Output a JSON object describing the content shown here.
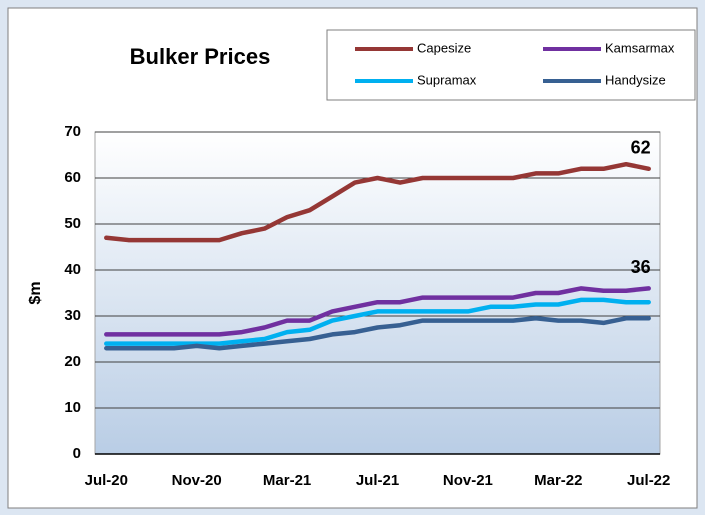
{
  "chart_data": {
    "type": "line",
    "title": "Bulker Prices",
    "y_label": "$m",
    "categories": [
      "Jul-20",
      null,
      null,
      null,
      "Nov-20",
      null,
      null,
      null,
      "Mar-21",
      null,
      null,
      null,
      "Jul-21",
      null,
      null,
      null,
      "Nov-21",
      null,
      null,
      null,
      "Mar-22",
      null,
      null,
      null,
      "Jul-22"
    ],
    "series": [
      {
        "name": "Capesize",
        "color": "#953735",
        "values": [
          47,
          46.5,
          46.5,
          46.5,
          46.5,
          46.5,
          48,
          49,
          51.5,
          53,
          56,
          59,
          60,
          59,
          60,
          60,
          60,
          60,
          60,
          61,
          61,
          62,
          62,
          63,
          62
        ]
      },
      {
        "name": "Kamsarmax",
        "color": "#7030a0",
        "values": [
          26,
          26,
          26,
          26,
          26,
          26,
          26.5,
          27.5,
          29,
          29,
          31,
          32,
          33,
          33,
          34,
          34,
          34,
          34,
          34,
          35,
          35,
          36,
          35.5,
          35.5,
          36
        ]
      },
      {
        "name": "Supramax",
        "color": "#00b0f0",
        "values": [
          24,
          24,
          24,
          24,
          24,
          24,
          24.5,
          25,
          26.5,
          27,
          29,
          30,
          31,
          31,
          31,
          31,
          31,
          32,
          32,
          32.5,
          32.5,
          33.5,
          33.5,
          33,
          33
        ]
      },
      {
        "name": "Handysize",
        "color": "#376092",
        "values": [
          23,
          23,
          23,
          23,
          23.5,
          23,
          23.5,
          24,
          24.5,
          25,
          26,
          26.5,
          27.5,
          28,
          29,
          29,
          29,
          29,
          29,
          29.5,
          29,
          29,
          28.5,
          29.5,
          29.5
        ]
      }
    ],
    "ylim": [
      0,
      70
    ],
    "yticks": [
      0,
      10,
      20,
      30,
      40,
      50,
      60,
      70
    ],
    "grid": true
  }
}
